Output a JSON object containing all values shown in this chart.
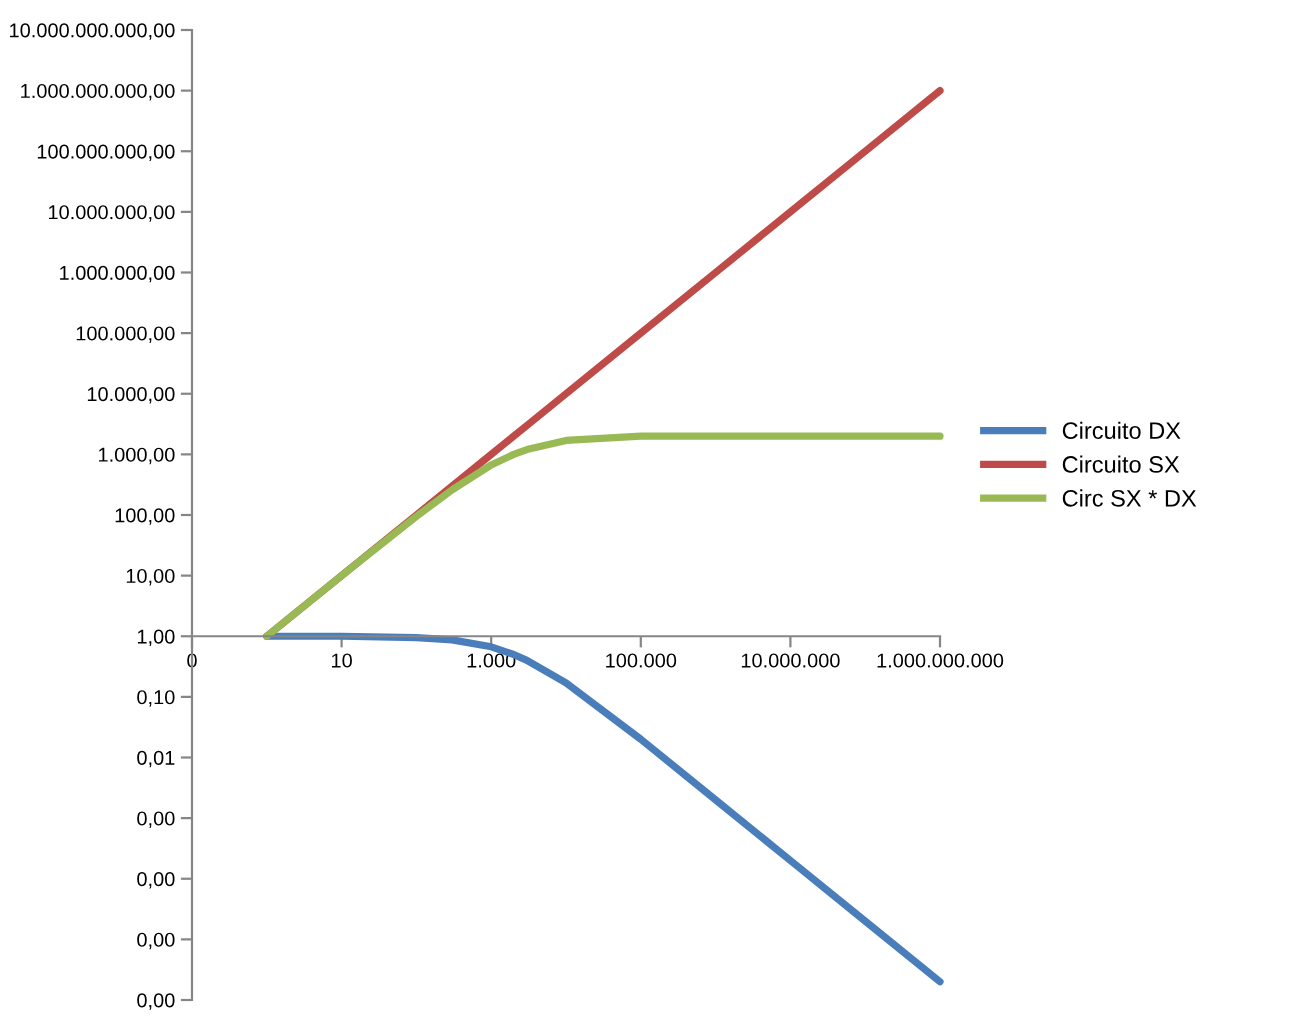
{
  "chart_data": {
    "type": "line",
    "log": "xy",
    "grid": false,
    "legend": "right",
    "marker": "none",
    "line_style": "solid",
    "x": [
      1,
      10,
      100,
      300,
      1000,
      2000,
      3000,
      10000,
      100000,
      1000000,
      10000000,
      100000000,
      1000000000
    ],
    "series": [
      {
        "name": "Circuito DX",
        "color": "#4a7ebb",
        "values": [
          1,
          1,
          0.95,
          0.87,
          0.67,
          0.5,
          0.4,
          0.17,
          0.02,
          0.002,
          0.0002,
          2e-05,
          2e-06
        ]
      },
      {
        "name": "Circuito SX",
        "color": "#be4b48",
        "values": [
          1,
          10,
          100,
          300,
          1000,
          2000,
          3000,
          10000,
          100000,
          1000000,
          10000000,
          100000000,
          1000000000
        ]
      },
      {
        "name": "Circ SX * DX",
        "color": "#98b954",
        "values": [
          1,
          10,
          95,
          260,
          670,
          1000,
          1200,
          1700,
          2000,
          2000,
          2000,
          2000,
          2000
        ]
      }
    ],
    "xlim": [
      0.1,
      1000000000
    ],
    "xticks": [
      {
        "value": 0.1,
        "label": "0"
      },
      {
        "value": 10,
        "label": "10"
      },
      {
        "value": 1000,
        "label": "1.000"
      },
      {
        "value": 100000,
        "label": "100.000"
      },
      {
        "value": 10000000,
        "label": "10.000.000"
      },
      {
        "value": 1000000000,
        "label": "1.000.000.000"
      }
    ],
    "ylim": [
      1e-06,
      10000000000
    ],
    "yticks": [
      {
        "value": 1e-06,
        "label": "0,00"
      },
      {
        "value": 1e-05,
        "label": "0,00"
      },
      {
        "value": 0.0001,
        "label": "0,00"
      },
      {
        "value": 0.001,
        "label": "0,00"
      },
      {
        "value": 0.01,
        "label": "0,01"
      },
      {
        "value": 0.1,
        "label": "0,10"
      },
      {
        "value": 1,
        "label": "1,00"
      },
      {
        "value": 10,
        "label": "10,00"
      },
      {
        "value": 100,
        "label": "100,00"
      },
      {
        "value": 1000,
        "label": "1.000,00"
      },
      {
        "value": 10000,
        "label": "10.000,00"
      },
      {
        "value": 100000,
        "label": "100.000,00"
      },
      {
        "value": 1000000,
        "label": "1.000.000,00"
      },
      {
        "value": 10000000,
        "label": "10.000.000,00"
      },
      {
        "value": 100000000,
        "label": "100.000.000,00"
      },
      {
        "value": 1000000000,
        "label": "1.000.000.000,00"
      },
      {
        "value": 10000000000,
        "label": "10.000.000.000,00"
      }
    ]
  }
}
